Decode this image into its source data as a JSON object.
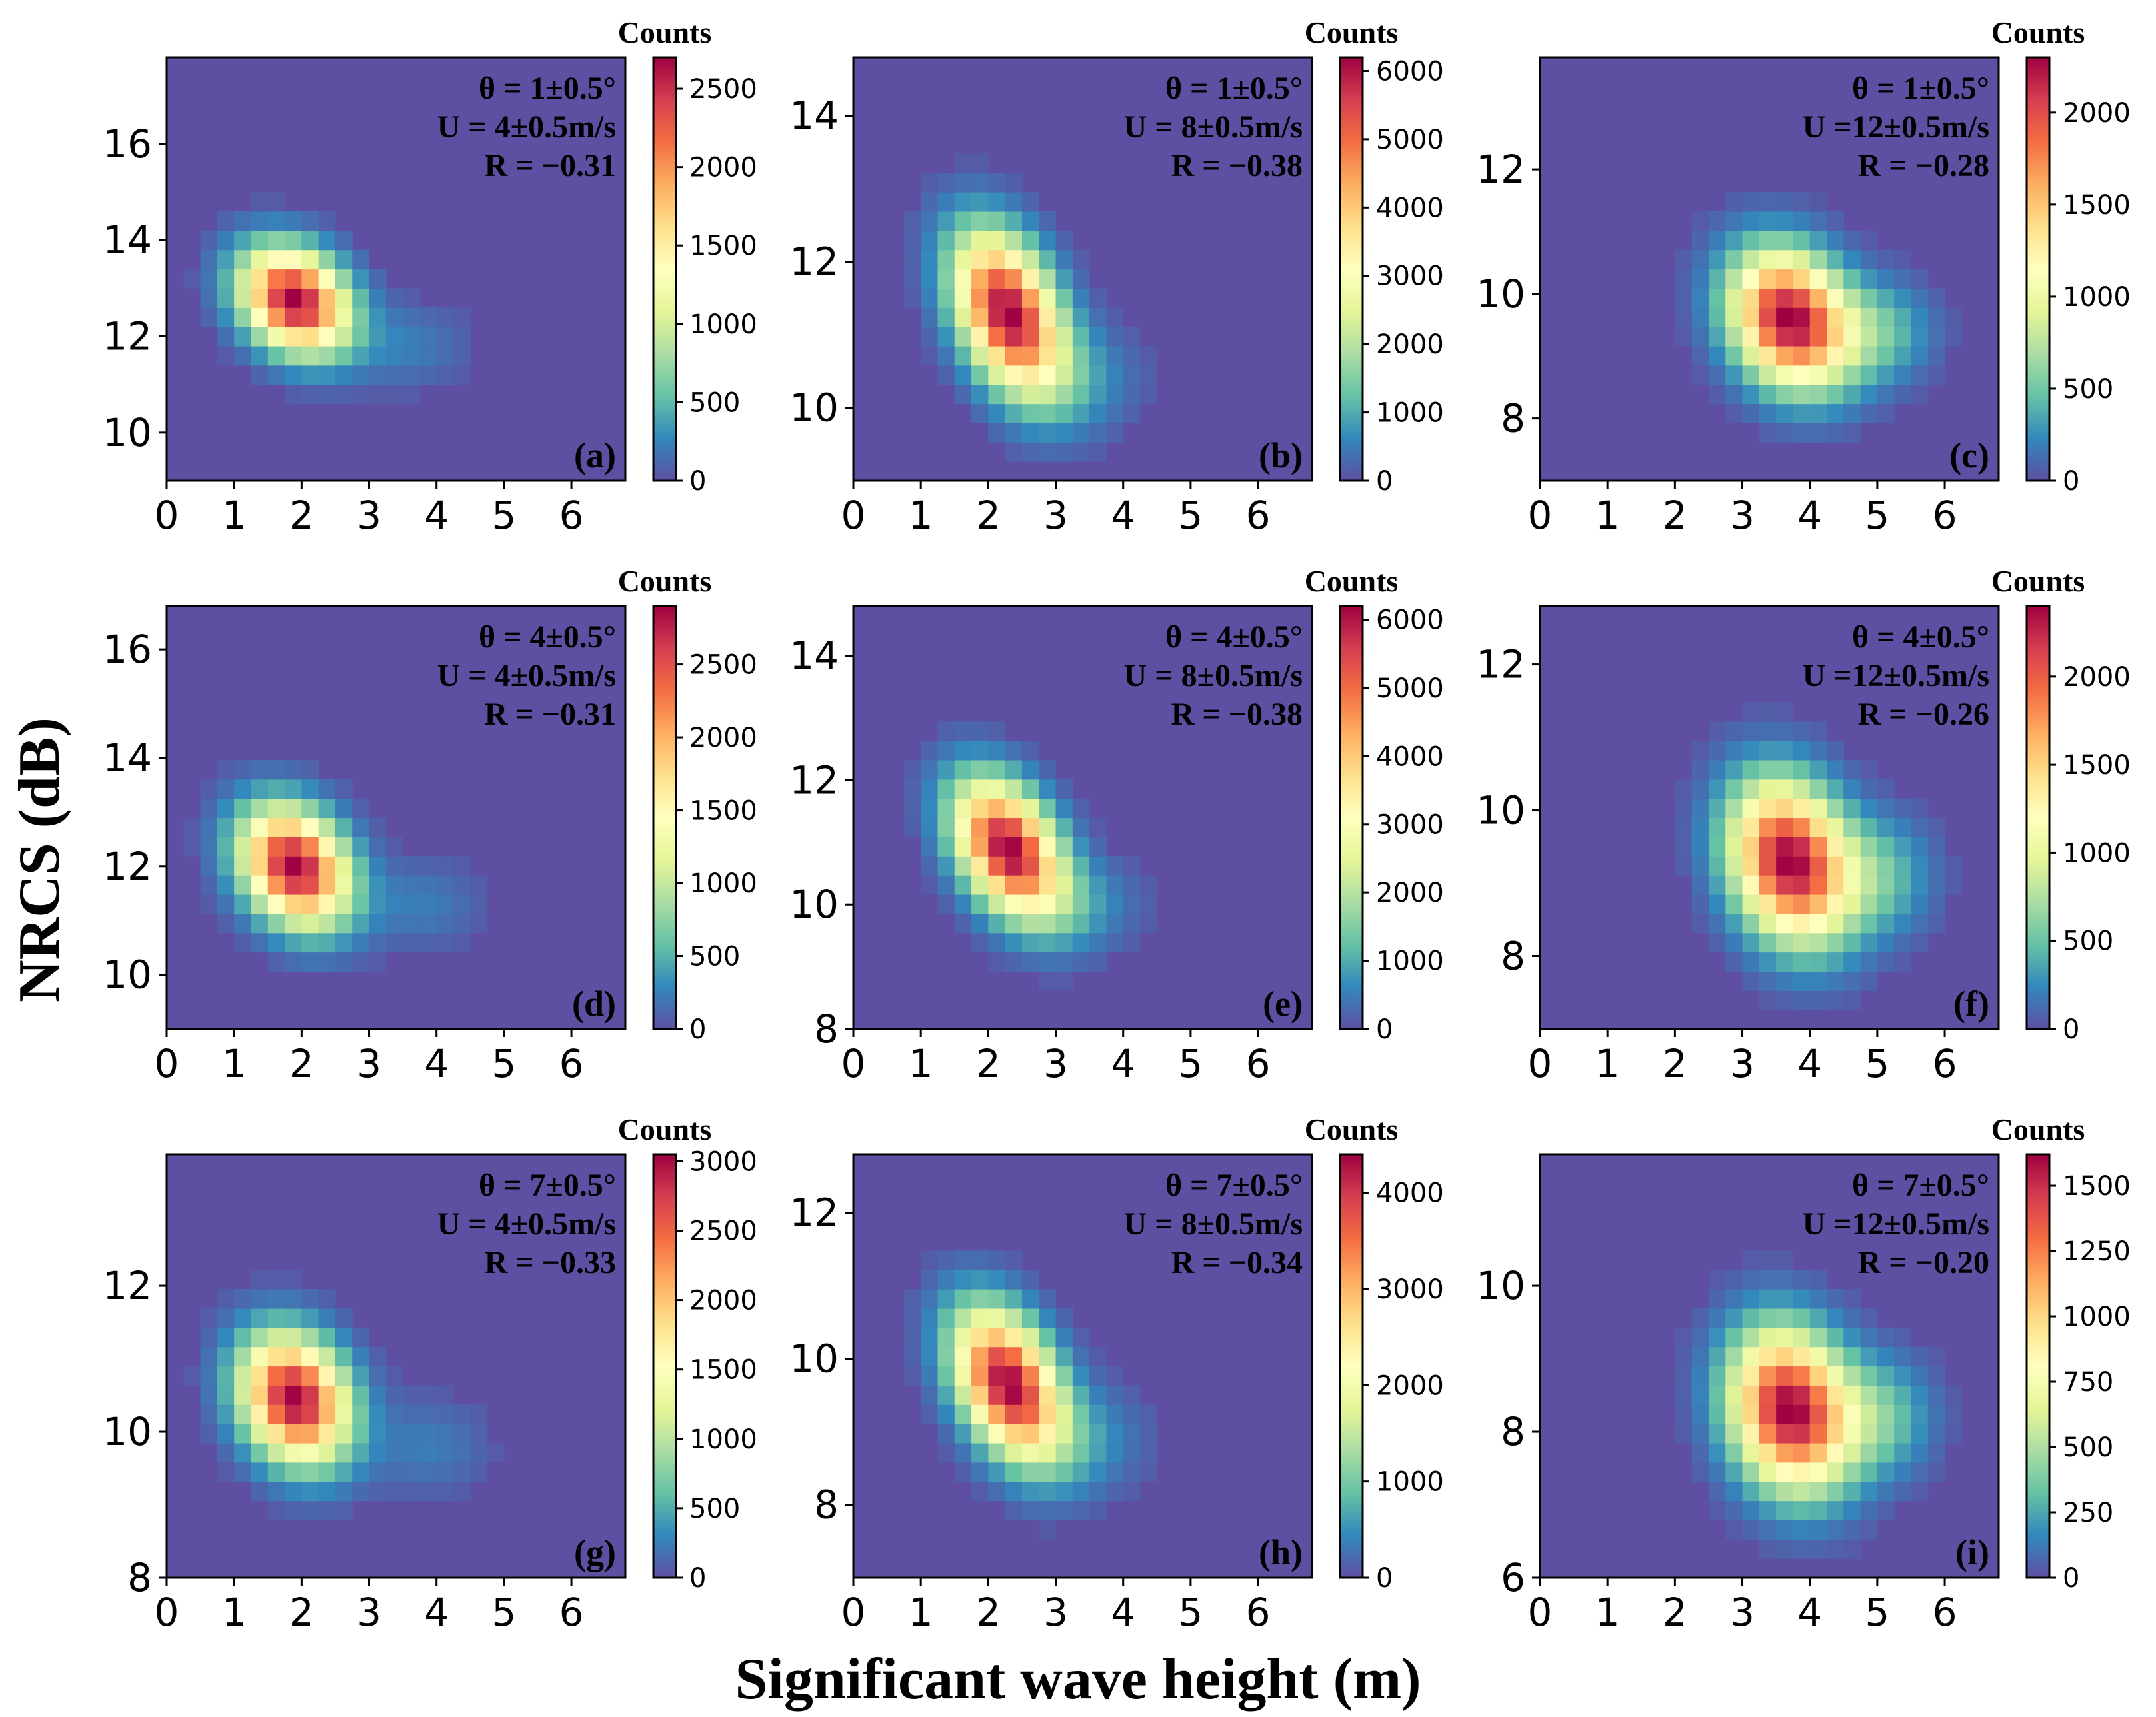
{
  "figure": {
    "ylabel": "NRCS (dB)",
    "xlabel": "Significant wave height (m)",
    "colorbar_label": "Counts",
    "colormap": [
      "#5e4fa2",
      "#3288bd",
      "#66c2a5",
      "#abdda4",
      "#e6f598",
      "#ffffbf",
      "#fee08b",
      "#fdae61",
      "#f46d43",
      "#d53e4f",
      "#9e0142"
    ]
  },
  "chart_data": [
    {
      "type": "heatmap",
      "panel": "(a)",
      "theta": "θ = 1±0.5°",
      "wind": "U = 4±0.5m/s",
      "corr": "R = −0.31",
      "xlim": [
        0,
        6.8
      ],
      "ylim": [
        9,
        17.8
      ],
      "xticks": [
        0,
        1,
        2,
        3,
        4,
        5,
        6
      ],
      "yticks": [
        10,
        12,
        14,
        16
      ],
      "peak": {
        "x": 1.9,
        "y": 12.75,
        "sx": 0.55,
        "sy": 0.75,
        "rho": -0.25
      },
      "tail": {
        "x": 3.6,
        "y": 11.8,
        "sx": 0.6,
        "sy": 0.6,
        "w": 0.08
      },
      "cmax": 2700,
      "cticks": [
        0,
        500,
        1000,
        1500,
        2000,
        2500
      ]
    },
    {
      "type": "heatmap",
      "panel": "(b)",
      "theta": "θ = 1±0.5°",
      "wind": "U = 8±0.5m/s",
      "corr": "R = −0.38",
      "xlim": [
        0,
        6.8
      ],
      "ylim": [
        9,
        14.8
      ],
      "xticks": [
        0,
        1,
        2,
        3,
        4,
        5,
        6
      ],
      "yticks": [
        10,
        12,
        14
      ],
      "peak": {
        "x": 2.3,
        "y": 11.3,
        "sx": 0.55,
        "sy": 0.75,
        "rho": -0.4
      },
      "tail": {
        "x": 3.4,
        "y": 10.4,
        "sx": 0.6,
        "sy": 0.5,
        "w": 0.1
      },
      "cmax": 6200,
      "cticks": [
        0,
        1000,
        2000,
        3000,
        4000,
        5000,
        6000
      ]
    },
    {
      "type": "heatmap",
      "panel": "(c)",
      "theta": "θ = 1±0.5°",
      "wind": "U =12±0.5m/s",
      "corr": "R = −0.28",
      "xlim": [
        0,
        6.8
      ],
      "ylim": [
        7,
        13.8
      ],
      "xticks": [
        0,
        1,
        2,
        3,
        4,
        5,
        6
      ],
      "yticks": [
        8,
        10,
        12
      ],
      "peak": {
        "x": 3.7,
        "y": 9.6,
        "sx": 0.6,
        "sy": 0.75,
        "rho": -0.2
      },
      "tail": {
        "x": 5.0,
        "y": 9.4,
        "sx": 0.55,
        "sy": 0.55,
        "w": 0.2
      },
      "cmax": 2300,
      "cticks": [
        0,
        500,
        1000,
        1500,
        2000
      ]
    },
    {
      "type": "heatmap",
      "panel": "(d)",
      "theta": "θ = 4±0.5°",
      "wind": "U = 4±0.5m/s",
      "corr": "R = −0.31",
      "xlim": [
        0,
        6.8
      ],
      "ylim": [
        9,
        16.8
      ],
      "xticks": [
        0,
        1,
        2,
        3,
        4,
        5,
        6
      ],
      "yticks": [
        10,
        12,
        14,
        16
      ],
      "peak": {
        "x": 1.9,
        "y": 12.0,
        "sx": 0.55,
        "sy": 0.75,
        "rho": -0.25
      },
      "tail": {
        "x": 3.8,
        "y": 11.3,
        "sx": 0.6,
        "sy": 0.55,
        "w": 0.08
      },
      "cmax": 2900,
      "cticks": [
        0,
        500,
        1000,
        1500,
        2000,
        2500
      ]
    },
    {
      "type": "heatmap",
      "panel": "(e)",
      "theta": "θ = 4±0.5°",
      "wind": "U = 8±0.5m/s",
      "corr": "R = −0.38",
      "xlim": [
        0,
        6.8
      ],
      "ylim": [
        8,
        14.8
      ],
      "xticks": [
        0,
        1,
        2,
        3,
        4,
        5,
        6
      ],
      "yticks": [
        8,
        10,
        12,
        14
      ],
      "peak": {
        "x": 2.3,
        "y": 10.9,
        "sx": 0.55,
        "sy": 0.75,
        "rho": -0.4
      },
      "tail": {
        "x": 3.4,
        "y": 10.0,
        "sx": 0.6,
        "sy": 0.5,
        "w": 0.1
      },
      "cmax": 6200,
      "cticks": [
        0,
        1000,
        2000,
        3000,
        4000,
        5000,
        6000
      ]
    },
    {
      "type": "heatmap",
      "panel": "(f)",
      "theta": "θ = 4±0.5°",
      "wind": "U =12±0.5m/s",
      "corr": "R = −0.26",
      "xlim": [
        0,
        6.8
      ],
      "ylim": [
        7,
        12.8
      ],
      "xticks": [
        0,
        1,
        2,
        3,
        4,
        5,
        6
      ],
      "yticks": [
        8,
        10,
        12
      ],
      "peak": {
        "x": 3.7,
        "y": 9.3,
        "sx": 0.6,
        "sy": 0.75,
        "rho": -0.2
      },
      "tail": {
        "x": 5.0,
        "y": 9.1,
        "sx": 0.55,
        "sy": 0.55,
        "w": 0.2
      },
      "cmax": 2400,
      "cticks": [
        0,
        500,
        1000,
        1500,
        2000
      ]
    },
    {
      "type": "heatmap",
      "panel": "(g)",
      "theta": "θ = 7±0.5°",
      "wind": "U = 4±0.5m/s",
      "corr": "R = −0.33",
      "xlim": [
        0,
        6.8
      ],
      "ylim": [
        8,
        13.8
      ],
      "xticks": [
        0,
        1,
        2,
        3,
        4,
        5,
        6
      ],
      "yticks": [
        8,
        10,
        12
      ],
      "peak": {
        "x": 1.9,
        "y": 10.45,
        "sx": 0.55,
        "sy": 0.6,
        "rho": -0.2
      },
      "tail": {
        "x": 3.9,
        "y": 9.8,
        "sx": 0.6,
        "sy": 0.45,
        "w": 0.08
      },
      "cmax": 3050,
      "cticks": [
        0,
        500,
        1000,
        1500,
        2000,
        2500,
        3000
      ]
    },
    {
      "type": "heatmap",
      "panel": "(h)",
      "theta": "θ = 7±0.5°",
      "wind": "U = 8±0.5m/s",
      "corr": "R = −0.34",
      "xlim": [
        0,
        6.8
      ],
      "ylim": [
        7,
        12.8
      ],
      "xticks": [
        0,
        1,
        2,
        3,
        4,
        5,
        6
      ],
      "yticks": [
        8,
        10,
        12
      ],
      "peak": {
        "x": 2.3,
        "y": 9.65,
        "sx": 0.55,
        "sy": 0.7,
        "rho": -0.4
      },
      "tail": {
        "x": 3.5,
        "y": 8.9,
        "sx": 0.6,
        "sy": 0.5,
        "w": 0.1
      },
      "cmax": 4400,
      "cticks": [
        0,
        1000,
        2000,
        3000,
        4000
      ]
    },
    {
      "type": "heatmap",
      "panel": "(i)",
      "theta": "θ = 7±0.5°",
      "wind": "U =12±0.5m/s",
      "corr": "R = −0.20",
      "xlim": [
        0,
        6.8
      ],
      "ylim": [
        6,
        11.8
      ],
      "xticks": [
        0,
        1,
        2,
        3,
        4,
        5,
        6
      ],
      "yticks": [
        6,
        8,
        10
      ],
      "peak": {
        "x": 3.7,
        "y": 8.3,
        "sx": 0.6,
        "sy": 0.75,
        "rho": -0.15
      },
      "tail": {
        "x": 5.0,
        "y": 8.2,
        "sx": 0.55,
        "sy": 0.55,
        "w": 0.22
      },
      "cmax": 1620,
      "cticks": [
        0,
        250,
        500,
        750,
        1000,
        1250,
        1500
      ]
    }
  ]
}
